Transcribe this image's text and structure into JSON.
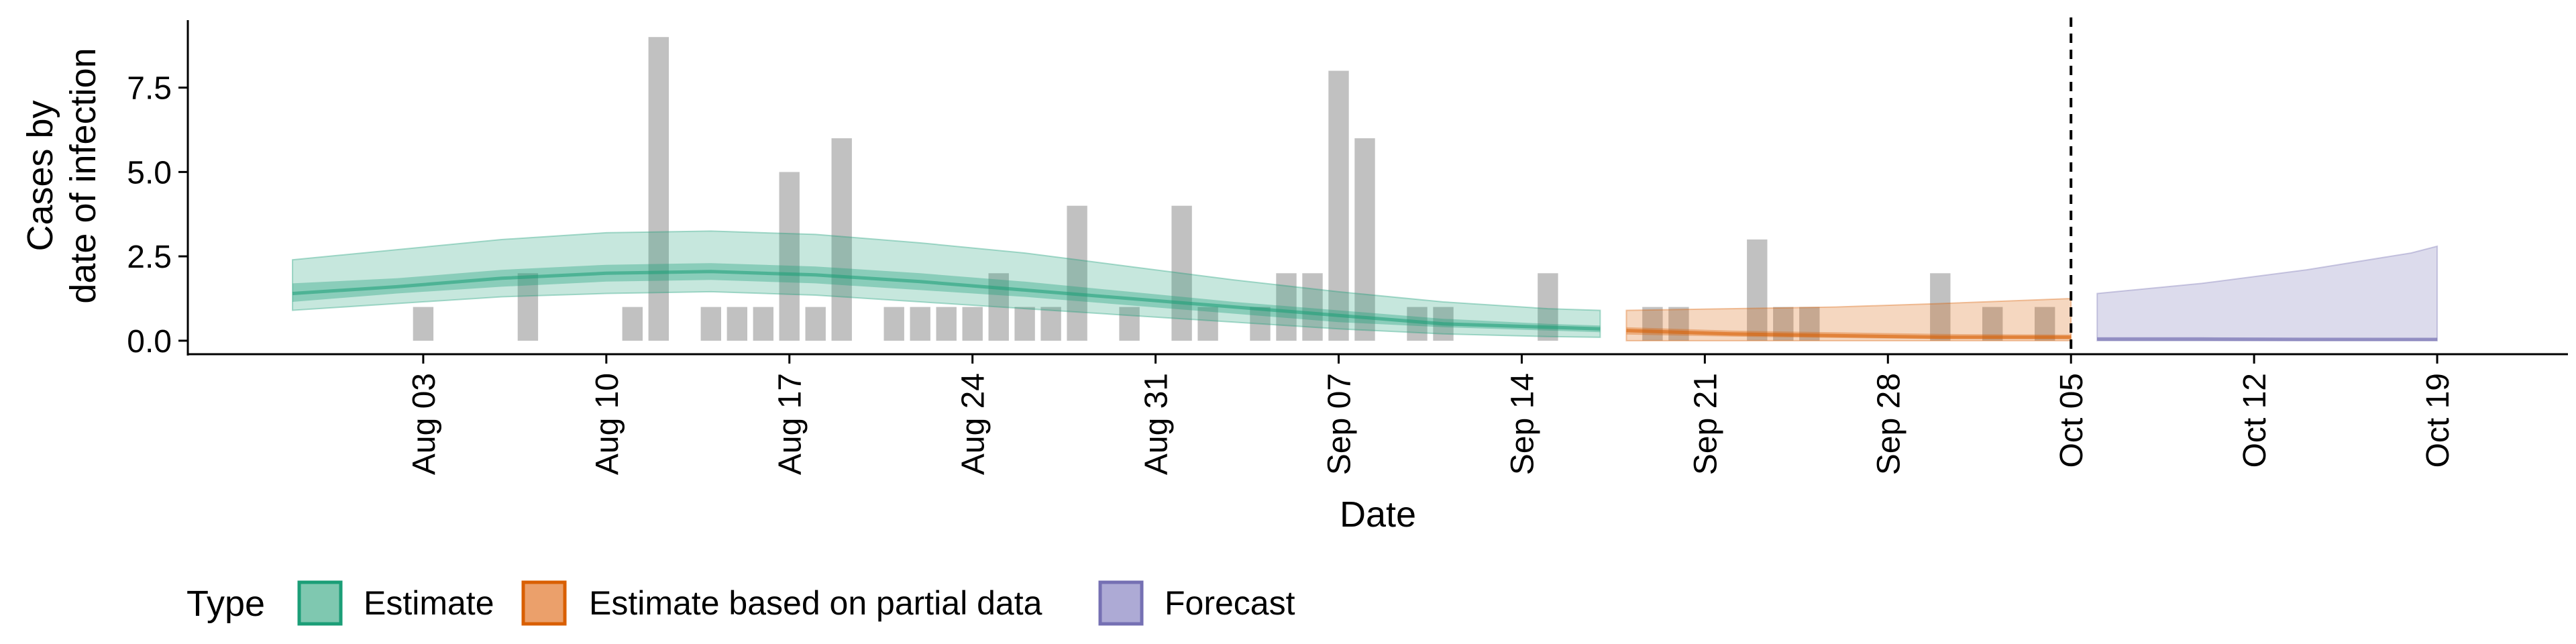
{
  "chart_data": {
    "type": "bar",
    "title": "",
    "xlabel": "Date",
    "ylabel_lines": [
      "Cases by",
      "date of infection"
    ],
    "x_start": "2020-07-27",
    "ylim": [
      -0.4,
      9.5
    ],
    "xlim": [
      "2020-07-25",
      "2020-10-24"
    ],
    "y_ticks": [
      0.0,
      2.5,
      5.0,
      7.5
    ],
    "y_tick_labels": [
      "0.0",
      "2.5",
      "5.0",
      "7.5"
    ],
    "x_ticks": [
      "2020-08-03",
      "2020-08-10",
      "2020-08-17",
      "2020-08-24",
      "2020-08-31",
      "2020-09-07",
      "2020-09-14",
      "2020-09-21",
      "2020-09-28",
      "2020-10-05",
      "2020-10-12",
      "2020-10-19"
    ],
    "x_tick_labels": [
      "Aug 03",
      "Aug 10",
      "Aug 17",
      "Aug 24",
      "Aug 31",
      "Sep 07",
      "Sep 14",
      "Sep 21",
      "Sep 28",
      "Oct 05",
      "Oct 12",
      "Oct 19"
    ],
    "forecast_date": "2020-10-05",
    "grid": false,
    "legend_position": "bottom",
    "bar_color": "#BEBEBE",
    "observed_cases": [
      {
        "date": "2020-08-03",
        "value": 1
      },
      {
        "date": "2020-08-07",
        "value": 2
      },
      {
        "date": "2020-08-11",
        "value": 1
      },
      {
        "date": "2020-08-12",
        "value": 9
      },
      {
        "date": "2020-08-14",
        "value": 1
      },
      {
        "date": "2020-08-15",
        "value": 1
      },
      {
        "date": "2020-08-16",
        "value": 1
      },
      {
        "date": "2020-08-17",
        "value": 5
      },
      {
        "date": "2020-08-18",
        "value": 1
      },
      {
        "date": "2020-08-19",
        "value": 6
      },
      {
        "date": "2020-08-21",
        "value": 1
      },
      {
        "date": "2020-08-22",
        "value": 1
      },
      {
        "date": "2020-08-23",
        "value": 1
      },
      {
        "date": "2020-08-24",
        "value": 1
      },
      {
        "date": "2020-08-25",
        "value": 2
      },
      {
        "date": "2020-08-26",
        "value": 1
      },
      {
        "date": "2020-08-27",
        "value": 1
      },
      {
        "date": "2020-08-28",
        "value": 4
      },
      {
        "date": "2020-08-30",
        "value": 1
      },
      {
        "date": "2020-09-01",
        "value": 4
      },
      {
        "date": "2020-09-02",
        "value": 1
      },
      {
        "date": "2020-09-04",
        "value": 1
      },
      {
        "date": "2020-09-05",
        "value": 2
      },
      {
        "date": "2020-09-06",
        "value": 2
      },
      {
        "date": "2020-09-07",
        "value": 8
      },
      {
        "date": "2020-09-08",
        "value": 6
      },
      {
        "date": "2020-09-10",
        "value": 1
      },
      {
        "date": "2020-09-11",
        "value": 1
      },
      {
        "date": "2020-09-15",
        "value": 2
      },
      {
        "date": "2020-09-19",
        "value": 1
      },
      {
        "date": "2020-09-20",
        "value": 1
      },
      {
        "date": "2020-09-23",
        "value": 3
      },
      {
        "date": "2020-09-24",
        "value": 1
      },
      {
        "date": "2020-09-25",
        "value": 1
      },
      {
        "date": "2020-09-30",
        "value": 2
      },
      {
        "date": "2020-10-02",
        "value": 1
      },
      {
        "date": "2020-10-04",
        "value": 1
      }
    ],
    "series": [
      {
        "name": "Estimate",
        "color": "#1B9E77",
        "x": [
          "2020-07-29",
          "2020-08-02",
          "2020-08-06",
          "2020-08-10",
          "2020-08-14",
          "2020-08-18",
          "2020-08-22",
          "2020-08-26",
          "2020-08-30",
          "2020-09-03",
          "2020-09-07",
          "2020-09-11",
          "2020-09-15",
          "2020-09-17"
        ],
        "median": [
          1.4,
          1.6,
          1.85,
          2.0,
          2.05,
          1.95,
          1.75,
          1.5,
          1.25,
          1.0,
          0.75,
          0.5,
          0.4,
          0.35
        ],
        "inner_lower": [
          1.15,
          1.4,
          1.6,
          1.75,
          1.8,
          1.7,
          1.5,
          1.3,
          1.05,
          0.8,
          0.55,
          0.4,
          0.3,
          0.25
        ],
        "inner_upper": [
          1.7,
          1.85,
          2.1,
          2.25,
          2.3,
          2.2,
          2.0,
          1.75,
          1.45,
          1.15,
          0.9,
          0.65,
          0.5,
          0.45
        ],
        "outer_lower": [
          0.9,
          1.1,
          1.3,
          1.4,
          1.45,
          1.35,
          1.15,
          0.95,
          0.75,
          0.55,
          0.35,
          0.2,
          0.12,
          0.1
        ],
        "outer_upper": [
          2.4,
          2.7,
          3.0,
          3.2,
          3.25,
          3.15,
          2.9,
          2.6,
          2.2,
          1.8,
          1.45,
          1.15,
          0.95,
          0.9
        ]
      },
      {
        "name": "Estimate based on partial data",
        "color": "#D95F02",
        "x": [
          "2020-09-18",
          "2020-09-22",
          "2020-09-26",
          "2020-09-30",
          "2020-10-05"
        ],
        "median": [
          0.3,
          0.2,
          0.15,
          0.1,
          0.1
        ],
        "inner_lower": [
          0.18,
          0.12,
          0.08,
          0.05,
          0.04
        ],
        "inner_upper": [
          0.4,
          0.3,
          0.25,
          0.2,
          0.18
        ],
        "outer_lower": [
          0.0,
          0.0,
          0.0,
          0.0,
          0.0
        ],
        "outer_upper": [
          0.9,
          0.95,
          1.0,
          1.1,
          1.25
        ]
      },
      {
        "name": "Forecast",
        "color": "#7570B3",
        "x": [
          "2020-10-06",
          "2020-10-10",
          "2020-10-14",
          "2020-10-18",
          "2020-10-19"
        ],
        "median": [
          0.05,
          0.05,
          0.04,
          0.04,
          0.04
        ],
        "inner_lower": [
          0.0,
          0.0,
          0.0,
          0.0,
          0.0
        ],
        "inner_upper": [
          0.1,
          0.1,
          0.09,
          0.08,
          0.08
        ],
        "outer_lower": [
          0.0,
          0.0,
          0.0,
          0.0,
          0.0
        ],
        "outer_upper": [
          1.4,
          1.7,
          2.1,
          2.6,
          2.8
        ]
      }
    ]
  },
  "legend": {
    "title": "Type",
    "items": [
      {
        "label": "Estimate",
        "fill": "#7FC8B0",
        "stroke": "#1B9E77"
      },
      {
        "label": "Estimate based on partial data",
        "fill": "#EBA06B",
        "stroke": "#D95F02"
      },
      {
        "label": "Forecast",
        "fill": "#ADAAD5",
        "stroke": "#7570B3"
      }
    ]
  }
}
